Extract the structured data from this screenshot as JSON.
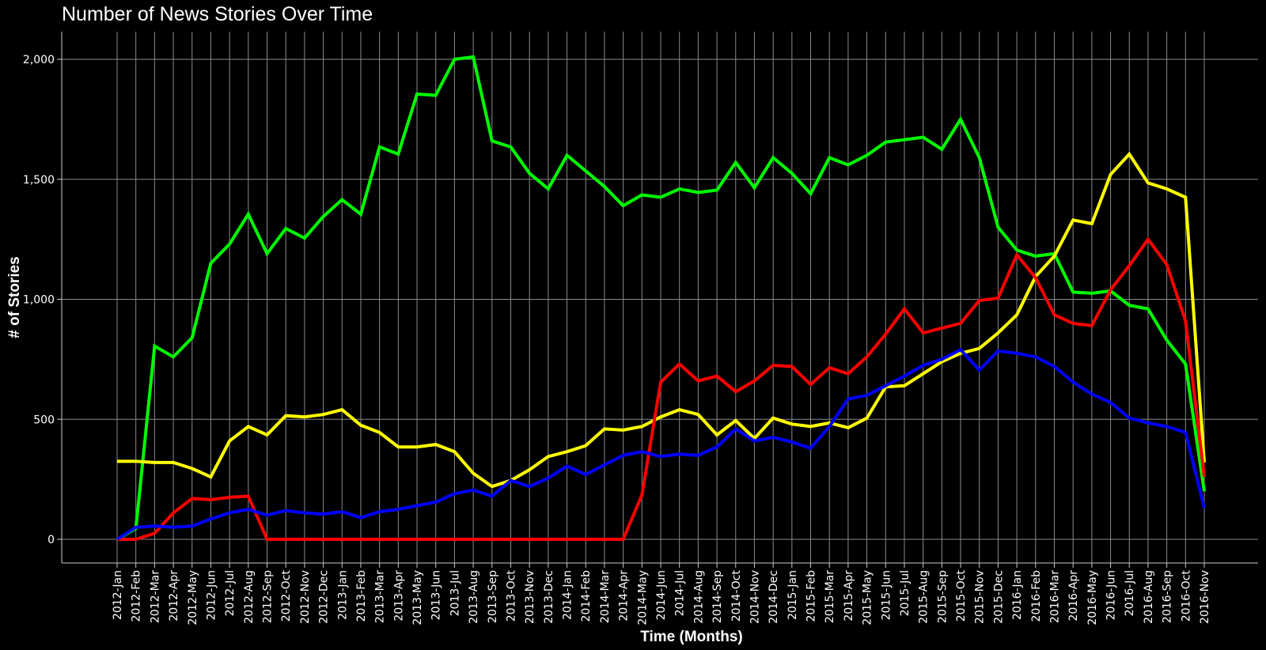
{
  "chart_data": {
    "type": "line",
    "title": "Number of News Stories Over Time",
    "xlabel": "Time (Months)",
    "ylabel": "# of Stories",
    "ylim": [
      -100,
      2110
    ],
    "yticks": [
      0,
      500,
      1000,
      1500,
      2000
    ],
    "ytick_labels": [
      "0",
      "500",
      "1,000",
      "1,500",
      "2,000"
    ],
    "grid": true,
    "legend": "none",
    "x": [
      "2012-Jan",
      "2012-Feb",
      "2012-Mar",
      "2012-Apr",
      "2012-May",
      "2012-Jun",
      "2012-Jul",
      "2012-Aug",
      "2012-Sep",
      "2012-Oct",
      "2012-Nov",
      "2012-Dec",
      "2013-Jan",
      "2013-Feb",
      "2013-Mar",
      "2013-Apr",
      "2013-May",
      "2013-Jun",
      "2013-Jul",
      "2013-Aug",
      "2013-Sep",
      "2013-Oct",
      "2013-Nov",
      "2013-Dec",
      "2014-Jan",
      "2014-Feb",
      "2014-Mar",
      "2014-Apr",
      "2014-May",
      "2014-Jun",
      "2014-Jul",
      "2014-Aug",
      "2014-Sep",
      "2014-Oct",
      "2014-Nov",
      "2014-Dec",
      "2015-Jan",
      "2015-Feb",
      "2015-Mar",
      "2015-Apr",
      "2015-May",
      "2015-Jun",
      "2015-Jul",
      "2015-Aug",
      "2015-Sep",
      "2015-Oct",
      "2015-Nov",
      "2015-Dec",
      "2016-Jan",
      "2016-Feb",
      "2016-Mar",
      "2016-Apr",
      "2016-May",
      "2016-Jun",
      "2016-Jul",
      "2016-Aug",
      "2016-Sep",
      "2016-Oct",
      "2016-Nov"
    ],
    "series": [
      {
        "color": "#00ff00",
        "values": [
          0,
          45,
          805,
          760,
          840,
          1150,
          1230,
          1355,
          1190,
          1295,
          1255,
          1345,
          1415,
          1355,
          1635,
          1605,
          1855,
          1850,
          2000,
          2010,
          1660,
          1635,
          1525,
          1460,
          1600,
          1535,
          1470,
          1390,
          1435,
          1425,
          1460,
          1445,
          1455,
          1570,
          1465,
          1590,
          1525,
          1440,
          1590,
          1560,
          1600,
          1655,
          1665,
          1675,
          1625,
          1750,
          1590,
          1300,
          1205,
          1180,
          1190,
          1030,
          1025,
          1035,
          975,
          960,
          830,
          730,
          200
        ]
      },
      {
        "color": "#ffff00",
        "values": [
          325,
          325,
          320,
          320,
          295,
          260,
          410,
          470,
          435,
          515,
          510,
          520,
          540,
          475,
          445,
          385,
          385,
          395,
          365,
          275,
          220,
          245,
          290,
          345,
          365,
          390,
          460,
          455,
          470,
          510,
          540,
          520,
          435,
          495,
          420,
          505,
          480,
          470,
          485,
          465,
          505,
          635,
          640,
          690,
          740,
          775,
          795,
          860,
          935,
          1095,
          1180,
          1330,
          1315,
          1520,
          1605,
          1485,
          1460,
          1425,
          320
        ]
      },
      {
        "color": "#ff0000",
        "values": [
          0,
          0,
          25,
          110,
          170,
          165,
          175,
          180,
          0,
          0,
          0,
          0,
          0,
          0,
          0,
          0,
          0,
          0,
          0,
          0,
          0,
          0,
          0,
          0,
          0,
          0,
          0,
          0,
          185,
          655,
          730,
          660,
          680,
          615,
          660,
          725,
          720,
          645,
          715,
          690,
          760,
          855,
          960,
          860,
          880,
          900,
          995,
          1005,
          1185,
          1090,
          935,
          900,
          890,
          1040,
          1140,
          1250,
          1145,
          910,
          260
        ]
      },
      {
        "color": "#0000ff",
        "values": [
          0,
          50,
          55,
          50,
          55,
          85,
          110,
          125,
          100,
          120,
          110,
          105,
          115,
          90,
          115,
          125,
          140,
          155,
          190,
          205,
          180,
          245,
          220,
          255,
          305,
          270,
          310,
          350,
          365,
          345,
          355,
          350,
          385,
          460,
          410,
          425,
          405,
          380,
          470,
          585,
          600,
          640,
          680,
          725,
          750,
          790,
          705,
          785,
          775,
          760,
          720,
          655,
          605,
          570,
          505,
          485,
          470,
          445,
          130
        ]
      }
    ]
  }
}
